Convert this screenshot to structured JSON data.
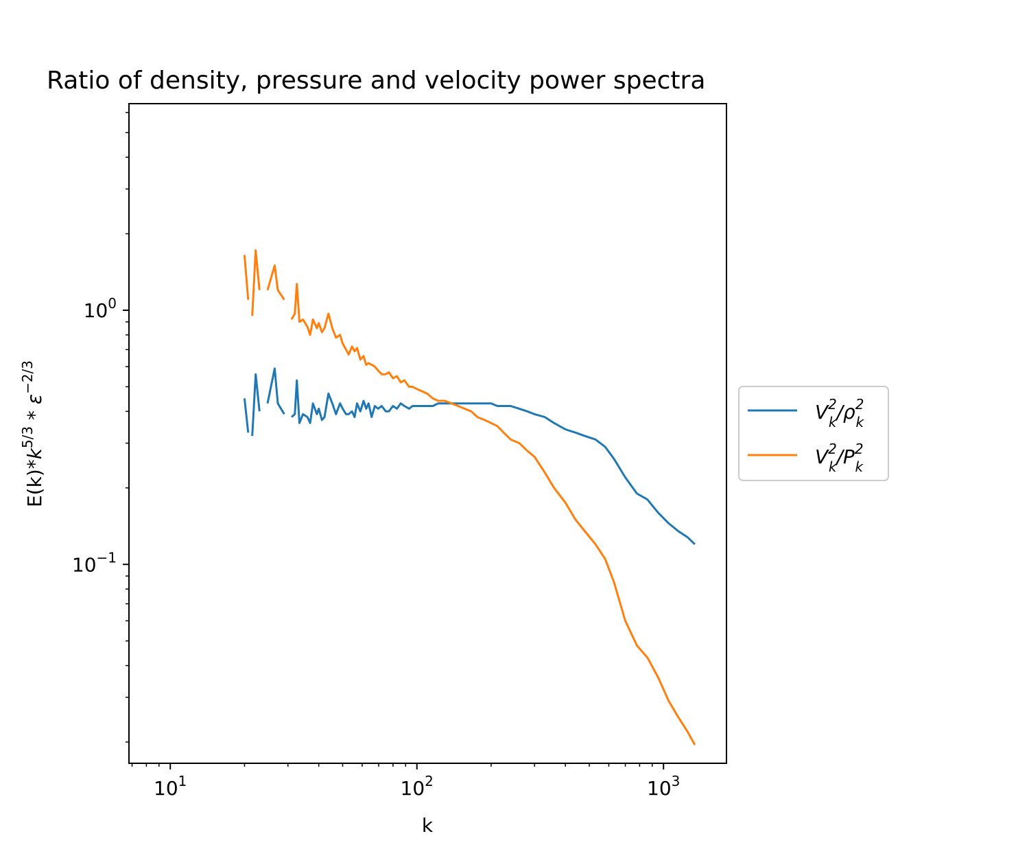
{
  "chart_data": {
    "type": "line",
    "title": "Ratio of density, pressure and velocity power spectra",
    "xlabel": "k",
    "ylabel": "E(k)*k^{5/3}*ε^{-2/3}",
    "xscale": "log",
    "yscale": "log",
    "xlim": [
      6.8,
      1800
    ],
    "ylim": [
      0.0165,
      6.5
    ],
    "xticks": [
      {
        "value": 10,
        "base": "10",
        "exp": "1"
      },
      {
        "value": 100,
        "base": "10",
        "exp": "2"
      },
      {
        "value": 1000,
        "base": "10",
        "exp": "3"
      }
    ],
    "yticks": [
      {
        "value": 0.1,
        "base": "10",
        "exp": "−1"
      },
      {
        "value": 1,
        "base": "10",
        "exp": "0"
      }
    ],
    "grid": false,
    "legend_position": "right, outside axes",
    "series": [
      {
        "name": "V_k^2/ρ_k^2",
        "legend_main": "V",
        "legend_sup1": "2",
        "legend_sub1": "k",
        "legend_mid": "/ρ",
        "legend_sup2": "2",
        "legend_sub2": "k",
        "color": "#1f77b4",
        "segments": [
          [
            [
              20,
              0.45
            ],
            [
              20.7,
              0.33
            ]
          ],
          [
            [
              21.5,
              0.32
            ],
            [
              22.2,
              0.56
            ],
            [
              23.0,
              0.4
            ]
          ],
          [
            [
              24.8,
              0.43
            ],
            [
              26.5,
              0.59
            ],
            [
              27.3,
              0.43
            ],
            [
              29.0,
              0.39
            ]
          ],
          [
            [
              31.0,
              0.38
            ],
            [
              32.0,
              0.39
            ],
            [
              32.6,
              0.53
            ],
            [
              33.4,
              0.36
            ],
            [
              34.5,
              0.39
            ],
            [
              36.0,
              0.38
            ],
            [
              36.9,
              0.36
            ],
            [
              37.9,
              0.43
            ],
            [
              39.3,
              0.39
            ],
            [
              40.0,
              0.41
            ],
            [
              41.2,
              0.37
            ],
            [
              42.2,
              0.38
            ],
            [
              43.8,
              0.47
            ],
            [
              45.4,
              0.43
            ],
            [
              47.0,
              0.39
            ],
            [
              48.8,
              0.43
            ],
            [
              50.0,
              0.41
            ],
            [
              51.6,
              0.39
            ],
            [
              52.9,
              0.39
            ],
            [
              54.6,
              0.4
            ],
            [
              55.9,
              0.38
            ],
            [
              57.2,
              0.43
            ],
            [
              59.0,
              0.4
            ],
            [
              60.8,
              0.44
            ],
            [
              62.3,
              0.41
            ],
            [
              63.7,
              0.43
            ],
            [
              65.5,
              0.38
            ],
            [
              67.5,
              0.42
            ],
            [
              69.6,
              0.41
            ],
            [
              72.0,
              0.42
            ],
            [
              74.8,
              0.4
            ],
            [
              77.0,
              0.4
            ],
            [
              80.0,
              0.42
            ],
            [
              83.0,
              0.41
            ],
            [
              86.0,
              0.43
            ],
            [
              89.0,
              0.42
            ],
            [
              93.0,
              0.41
            ],
            [
              96.0,
              0.42
            ],
            [
              100.0,
              0.42
            ],
            [
              105.0,
              0.42
            ],
            [
              110.0,
              0.42
            ],
            [
              116.0,
              0.42
            ],
            [
              122.0,
              0.43
            ],
            [
              130.0,
              0.43
            ],
            [
              138.0,
              0.43
            ],
            [
              147.0,
              0.43
            ],
            [
              156.0,
              0.43
            ],
            [
              166.0,
              0.43
            ],
            [
              176.0,
              0.43
            ],
            [
              188.0,
              0.43
            ],
            [
              200.0,
              0.43
            ],
            [
              212.0,
              0.42
            ],
            [
              225.0,
              0.42
            ],
            [
              240.0,
              0.42
            ],
            [
              260.0,
              0.41
            ],
            [
              280.0,
              0.4
            ],
            [
              300.0,
              0.39
            ],
            [
              330.0,
              0.38
            ],
            [
              360.0,
              0.36
            ],
            [
              400.0,
              0.34
            ],
            [
              440.0,
              0.33
            ],
            [
              480.0,
              0.32
            ],
            [
              530.0,
              0.31
            ],
            [
              580.0,
              0.29
            ],
            [
              630.0,
              0.26
            ],
            [
              700.0,
              0.22
            ],
            [
              780.0,
              0.19
            ],
            [
              860.0,
              0.18
            ],
            [
              950.0,
              0.16
            ],
            [
              1050.0,
              0.145
            ],
            [
              1150.0,
              0.135
            ],
            [
              1250.0,
              0.128
            ],
            [
              1340.0,
              0.12
            ]
          ]
        ]
      },
      {
        "name": "V_k^2/P_k^2",
        "legend_main": "V",
        "legend_sup1": "2",
        "legend_sub1": "k",
        "legend_mid": "/P",
        "legend_sup2": "2",
        "legend_sub2": "k",
        "color": "#ff7f0e",
        "segments": [
          [
            [
              20,
              1.65
            ],
            [
              20.7,
              1.1
            ]
          ],
          [
            [
              21.5,
              0.95
            ],
            [
              22.2,
              1.72
            ],
            [
              23.0,
              1.2
            ]
          ],
          [
            [
              24.8,
              1.2
            ],
            [
              26.5,
              1.5
            ],
            [
              27.3,
              1.2
            ],
            [
              29.0,
              1.1
            ]
          ],
          [
            [
              31.0,
              0.92
            ],
            [
              32.0,
              0.97
            ],
            [
              32.6,
              1.27
            ],
            [
              33.4,
              0.9
            ],
            [
              34.5,
              0.92
            ],
            [
              36.0,
              0.86
            ],
            [
              36.9,
              0.8
            ],
            [
              37.9,
              0.92
            ],
            [
              39.3,
              0.85
            ],
            [
              40.0,
              0.89
            ],
            [
              41.2,
              0.82
            ],
            [
              42.2,
              0.85
            ],
            [
              43.8,
              0.97
            ],
            [
              45.4,
              0.85
            ],
            [
              47.0,
              0.78
            ],
            [
              48.8,
              0.8
            ],
            [
              50.0,
              0.74
            ],
            [
              51.6,
              0.7
            ],
            [
              52.9,
              0.67
            ],
            [
              54.6,
              0.72
            ],
            [
              55.9,
              0.69
            ],
            [
              57.2,
              0.71
            ],
            [
              59.0,
              0.64
            ],
            [
              60.8,
              0.66
            ],
            [
              62.3,
              0.61
            ],
            [
              63.7,
              0.62
            ],
            [
              65.5,
              0.61
            ],
            [
              67.5,
              0.6
            ],
            [
              69.6,
              0.58
            ],
            [
              72.0,
              0.56
            ],
            [
              74.8,
              0.56
            ],
            [
              77.0,
              0.57
            ],
            [
              80.0,
              0.54
            ],
            [
              83.0,
              0.55
            ],
            [
              86.0,
              0.52
            ],
            [
              89.0,
              0.53
            ],
            [
              93.0,
              0.5
            ],
            [
              96.0,
              0.5
            ],
            [
              100.0,
              0.49
            ],
            [
              105.0,
              0.48
            ],
            [
              110.0,
              0.47
            ],
            [
              116.0,
              0.45
            ],
            [
              122.0,
              0.44
            ],
            [
              130.0,
              0.44
            ],
            [
              138.0,
              0.43
            ],
            [
              147.0,
              0.42
            ],
            [
              156.0,
              0.41
            ],
            [
              166.0,
              0.4
            ],
            [
              176.0,
              0.38
            ],
            [
              188.0,
              0.37
            ],
            [
              200.0,
              0.36
            ],
            [
              212.0,
              0.35
            ],
            [
              225.0,
              0.33
            ],
            [
              240.0,
              0.31
            ],
            [
              260.0,
              0.3
            ],
            [
              280.0,
              0.28
            ],
            [
              300.0,
              0.265
            ],
            [
              330.0,
              0.23
            ],
            [
              360.0,
              0.2
            ],
            [
              400.0,
              0.175
            ],
            [
              440.0,
              0.15
            ],
            [
              480.0,
              0.135
            ],
            [
              530.0,
              0.12
            ],
            [
              580.0,
              0.105
            ],
            [
              630.0,
              0.085
            ],
            [
              700.0,
              0.06
            ],
            [
              780.0,
              0.048
            ],
            [
              860.0,
              0.043
            ],
            [
              950.0,
              0.036
            ],
            [
              1050.0,
              0.029
            ],
            [
              1150.0,
              0.025
            ],
            [
              1250.0,
              0.022
            ],
            [
              1340.0,
              0.0195
            ]
          ]
        ]
      }
    ]
  }
}
